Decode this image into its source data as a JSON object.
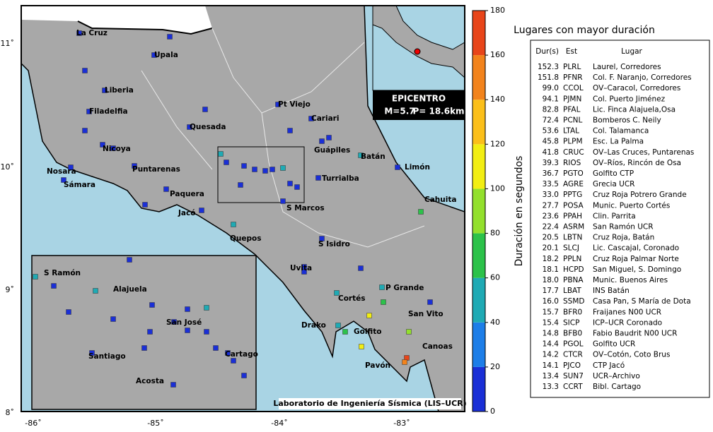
{
  "map": {
    "lon_labels": [
      "-86˚",
      "-85˚",
      "-84˚",
      "-83˚"
    ],
    "lat_labels": [
      "11˚",
      "10˚",
      "9˚",
      "8˚"
    ],
    "places": [
      "La Cruz",
      "Upala",
      "Liberia",
      "Filadelfia",
      "Quesada",
      "Pt Viejo",
      "Cariari",
      "Guápiles",
      "Batán",
      "Limón",
      "Nicoya",
      "Nosara",
      "Sámara",
      "Puntarenas",
      "Paquera",
      "Jacó",
      "Turrialba",
      "S Marcos",
      "Quepos",
      "S Isidro",
      "Cahuita",
      "Uvita",
      "P Grande",
      "Cortés",
      "San Vito",
      "Drako",
      "Golfito",
      "Canoas",
      "Pavón"
    ],
    "inset_places": [
      "S Ramón",
      "Alajuela",
      "San José",
      "Santiago",
      "Cartago",
      "Acosta"
    ],
    "epicentro": {
      "title": "EPICENTRO",
      "magnitude": "M=5.7",
      "depth": "P= 18.6km"
    },
    "credit": "Laboratorio de Ingeniería Sísmica (LIS–UCR)"
  },
  "colorbar": {
    "label": "Duración en segundos",
    "range": [
      0,
      180
    ],
    "ticks": [
      0,
      20,
      40,
      60,
      80,
      100,
      120,
      140,
      160,
      180
    ],
    "colors": [
      "#1a2fd6",
      "#1d7ee8",
      "#1faab4",
      "#2cc24a",
      "#93e02d",
      "#f2ee13",
      "#fbbf1a",
      "#f2831c",
      "#e8451a"
    ]
  },
  "table": {
    "title": "Lugares con mayor duración",
    "header": [
      "Dur(s)",
      "Est",
      "Lugar"
    ],
    "rows": [
      [
        "152.3",
        "PLRL",
        "Laurel, Corredores"
      ],
      [
        "151.8",
        "PFNR",
        "Col. F. Naranjo, Corredores"
      ],
      [
        "99.0",
        "CCOL",
        "OV–Caracol, Corredores"
      ],
      [
        "94.1",
        "PJMN",
        "Col. Puerto Jiménez"
      ],
      [
        "82.8",
        "PFAL",
        "Lic. Finca Alajuela,Osa"
      ],
      [
        "72.4",
        "PCNL",
        "Bomberos C. Neily"
      ],
      [
        "53.6",
        "LTAL",
        "Col. Talamanca"
      ],
      [
        "45.8",
        "PLPM",
        "Esc. La Palma"
      ],
      [
        "41.8",
        "CRUC",
        "OV–Las Cruces, Puntarenas"
      ],
      [
        "39.3",
        "RIOS",
        "OV–Ríos, Rincón de Osa"
      ],
      [
        "36.7",
        "PGTO",
        "Golfito CTP"
      ],
      [
        "33.5",
        "AGRE",
        "Grecia UCR"
      ],
      [
        "33.0",
        "PPTG",
        "Cruz Roja Potrero Grande"
      ],
      [
        "27.7",
        "POSA",
        "Munic. Puerto Cortés"
      ],
      [
        "23.6",
        "PPAH",
        "Clin. Parrita"
      ],
      [
        "22.4",
        "ASRM",
        "San Ramón UCR"
      ],
      [
        "20.5",
        "LBTN",
        "Cruz Roja, Batán"
      ],
      [
        "20.1",
        "SLCJ",
        "Lic. Cascajal, Coronado"
      ],
      [
        "18.2",
        "PPLN",
        "Cruz Roja Palmar Norte"
      ],
      [
        "18.1",
        "HCPD",
        "San Miguel, S. Domingo"
      ],
      [
        "18.0",
        "PBNA",
        "Munic. Buenos Aires"
      ],
      [
        "17.7",
        "LBAT",
        "INS Batán"
      ],
      [
        "16.0",
        "SSMD",
        "Casa Pan, S María de Dota"
      ],
      [
        "15.7",
        "BFR0",
        "Fraijanes N00 UCR"
      ],
      [
        "15.4",
        "SICP",
        "ICP–UCR Coronado"
      ],
      [
        "14.8",
        "BFB0",
        "Fabio Baudrit N00 UCR"
      ],
      [
        "14.4",
        "PGOL",
        "Golfito UCR"
      ],
      [
        "14.2",
        "CTCR",
        "OV–Cotón, Coto Brus"
      ],
      [
        "14.1",
        "PJCO",
        "CTP Jacó"
      ],
      [
        "13.4",
        "SUN7",
        "UCR–Archivo"
      ],
      [
        "13.3",
        "CCRT",
        "Bibl. Cartago"
      ]
    ]
  }
}
